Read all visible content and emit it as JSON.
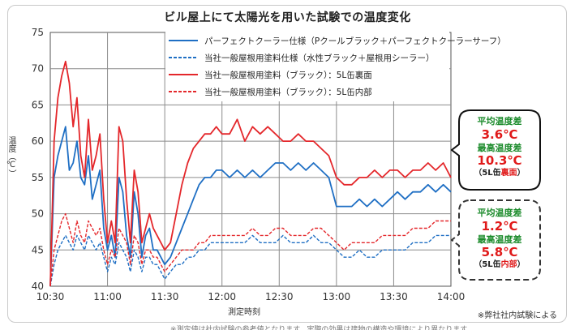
{
  "title": "ビル屋上にて太陽光を用いた試験での温度変化",
  "ylabel": "温度（℃）",
  "xlabel": "測定時刻",
  "note": "※弊社社内試験による",
  "bottom_text": "※測定値は社内試験の参考値となります。実際の効果は建物の構造や環境により異なります。",
  "callouts": {
    "top": {
      "avg_label": "平均温度差",
      "avg_value": "3.6℃",
      "max_label": "最高温度差",
      "max_value": "10.3℃",
      "sub_prefix": "（5L缶",
      "sub_highlight": "裏面",
      "sub_suffix": "）"
    },
    "bottom": {
      "avg_label": "平均温度差",
      "avg_value": "1.2℃",
      "max_label": "最高温度差",
      "max_value": "5.8℃",
      "sub_prefix": "（5L缶",
      "sub_highlight": "内部",
      "sub_suffix": "）"
    }
  },
  "colors": {
    "blue": "#1f6fc4",
    "red": "#e4272b",
    "grid": "#8c8c8c",
    "callout_green": "#1a8a2a",
    "callout_red": "#e01a1a"
  },
  "chart_data": {
    "type": "line",
    "title": "ビル屋上にて太陽光を用いた試験での温度変化",
    "xlabel": "測定時刻",
    "ylabel": "温度（℃）",
    "ylim": [
      40,
      75
    ],
    "yticks": [
      40,
      45,
      50,
      55,
      60,
      65,
      70,
      75
    ],
    "xlim": [
      "10:30",
      "14:00"
    ],
    "xticks": [
      "10:30",
      "11:00",
      "11:30",
      "12:00",
      "12:30",
      "13:00",
      "13:30",
      "14:00"
    ],
    "grid": true,
    "legend_position": "top-center",
    "x": [
      "10:30",
      "10:32",
      "10:34",
      "10:36",
      "10:38",
      "10:40",
      "10:42",
      "10:44",
      "10:46",
      "10:48",
      "10:50",
      "10:52",
      "10:54",
      "10:56",
      "10:58",
      "11:00",
      "11:02",
      "11:04",
      "11:06",
      "11:08",
      "11:10",
      "11:12",
      "11:14",
      "11:16",
      "11:18",
      "11:20",
      "11:22",
      "11:24",
      "11:26",
      "11:28",
      "11:30",
      "11:33",
      "11:36",
      "11:39",
      "11:42",
      "11:45",
      "11:48",
      "11:51",
      "11:54",
      "11:57",
      "12:00",
      "12:04",
      "12:08",
      "12:12",
      "12:16",
      "12:20",
      "12:24",
      "12:28",
      "12:32",
      "12:36",
      "12:40",
      "12:44",
      "12:48",
      "12:52",
      "12:56",
      "13:00",
      "13:04",
      "13:08",
      "13:12",
      "13:16",
      "13:20",
      "13:24",
      "13:28",
      "13:32",
      "13:36",
      "13:40",
      "13:44",
      "13:48",
      "13:52",
      "13:56",
      "14:00"
    ],
    "series": [
      {
        "name": "パーフェクトクーラー仕様（Pクールブラック＋パーフェクトクーラーサーフ）",
        "style": "solid",
        "color": "#1f6fc4",
        "values": [
          40,
          55,
          58,
          60,
          62,
          56,
          57,
          60,
          55,
          54,
          58,
          52,
          54,
          56,
          48,
          45,
          47,
          44,
          55,
          53,
          47,
          44,
          53,
          50,
          44,
          47,
          48,
          45,
          45,
          44,
          43,
          44,
          46,
          48,
          50,
          52,
          54,
          55,
          55,
          56,
          56,
          55,
          56,
          55,
          56,
          55,
          56,
          57,
          57,
          56,
          57,
          56,
          57,
          56,
          55,
          51,
          51,
          51,
          52,
          51,
          52,
          51,
          52,
          53,
          52,
          53,
          53,
          54,
          53,
          54,
          53
        ]
      },
      {
        "name": "当社一般屋根用塗料仕様（水性ブラック＋屋根用シーラー）",
        "style": "dashed",
        "color": "#1f6fc4",
        "values": [
          40,
          43,
          45,
          46,
          47,
          46,
          45,
          47,
          46,
          45,
          47,
          46,
          45,
          46,
          44,
          42,
          44,
          43,
          46,
          45,
          44,
          42,
          45,
          44,
          42,
          44,
          44,
          43,
          43,
          42,
          41,
          42,
          43,
          43,
          44,
          44,
          45,
          45,
          46,
          46,
          46,
          46,
          46,
          46,
          47,
          46,
          46,
          46,
          47,
          46,
          46,
          46,
          47,
          46,
          46,
          45,
          44,
          44,
          45,
          44,
          44,
          45,
          45,
          45,
          45,
          46,
          46,
          46,
          47,
          47,
          47
        ]
      },
      {
        "name": "当社一般屋根用塗料（ブラック）：5L缶裏面",
        "style": "solid",
        "color": "#e4272b",
        "values": [
          40,
          60,
          66,
          69,
          71,
          68,
          62,
          66,
          58,
          55,
          63,
          56,
          58,
          61,
          52,
          46,
          49,
          46,
          62,
          60,
          52,
          46,
          56,
          53,
          46,
          48,
          50,
          48,
          47,
          46,
          45,
          46,
          50,
          54,
          57,
          59,
          60,
          61,
          61,
          62,
          61,
          61,
          63,
          60,
          62,
          61,
          62,
          61,
          60,
          60,
          61,
          60,
          60,
          59,
          58,
          55,
          54,
          54,
          55,
          55,
          56,
          55,
          56,
          56,
          55,
          56,
          56,
          57,
          56,
          57,
          55
        ]
      },
      {
        "name": "当社一般屋根用塗料（ブラック）：5L缶内部",
        "style": "dashed",
        "color": "#e4272b",
        "values": [
          40,
          45,
          47,
          49,
          50,
          48,
          46,
          49,
          47,
          46,
          49,
          48,
          47,
          48,
          45,
          43,
          45,
          44,
          48,
          47,
          46,
          43,
          47,
          46,
          43,
          45,
          45,
          44,
          44,
          43,
          42,
          43,
          44,
          45,
          45,
          45,
          46,
          46,
          47,
          47,
          47,
          47,
          47,
          47,
          48,
          47,
          47,
          48,
          48,
          47,
          47,
          47,
          48,
          48,
          47,
          46,
          45,
          46,
          46,
          46,
          46,
          47,
          47,
          47,
          47,
          48,
          48,
          48,
          49,
          49,
          49
        ]
      }
    ]
  }
}
